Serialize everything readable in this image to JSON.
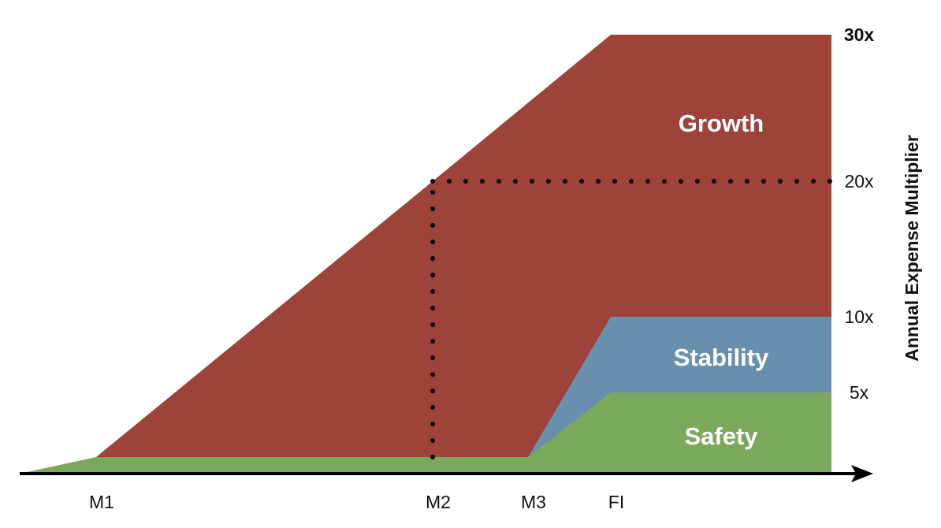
{
  "chart_data": {
    "type": "area",
    "title": "",
    "xlabel": "",
    "ylabel": "Annual Expense Multiplier",
    "ylim": [
      0,
      30
    ],
    "x_ticks": [
      "M1",
      "M2",
      "M3",
      "FI"
    ],
    "y_ticks": [
      {
        "value": 5,
        "label": "5x",
        "bold": false
      },
      {
        "value": 10,
        "label": "10x",
        "bold": false
      },
      {
        "value": 20,
        "label": "20x",
        "bold": false
      },
      {
        "value": 30,
        "label": "30x",
        "bold": true
      }
    ],
    "series": [
      {
        "name": "Safety",
        "color": "#7aa95c",
        "points": [
          [
            "start",
            0
          ],
          [
            "M1",
            1
          ],
          [
            "M2",
            1
          ],
          [
            "M3",
            1
          ],
          [
            "FI",
            5
          ],
          [
            "end",
            5
          ]
        ]
      },
      {
        "name": "Stability",
        "color": "#6690ad",
        "points": [
          [
            "M2",
            1
          ],
          [
            "M3",
            1
          ],
          [
            "FI",
            10
          ],
          [
            "end",
            10
          ]
        ]
      },
      {
        "name": "Growth",
        "color": "#9e433a",
        "points": [
          [
            "M1",
            1
          ],
          [
            "M2",
            20
          ],
          [
            "FI",
            30
          ],
          [
            "end",
            30
          ]
        ]
      }
    ],
    "reference_lines": [
      {
        "style": "dotted",
        "from": [
          "M2",
          1
        ],
        "to": [
          "M2",
          20
        ]
      },
      {
        "style": "dotted",
        "from": [
          "M2",
          20
        ],
        "to": [
          "end",
          20
        ]
      }
    ],
    "axis_arrow": true,
    "grid": false
  }
}
